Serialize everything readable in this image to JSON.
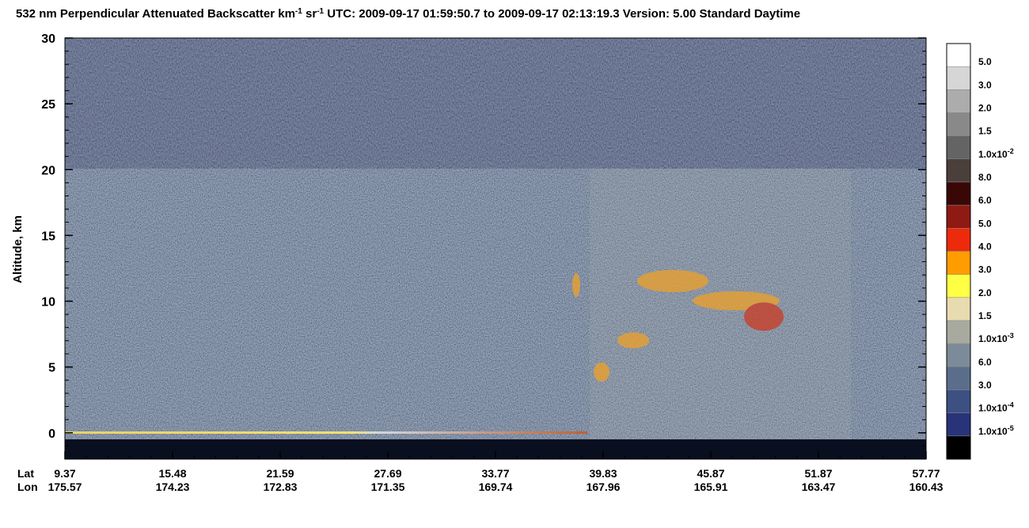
{
  "chart_data": {
    "type": "curtain",
    "title": [
      {
        "text": "532 nm Perpendicular Attenuated Backscatter km",
        "sup": "-1"
      },
      {
        "text": " sr",
        "sup": "-1"
      },
      {
        "text": "  UTC: 2009-09-17 01:59:50.7 to 2009-09-17 02:13:19.3  Version: 5.00 Standard Daytime"
      }
    ],
    "ylabel": "Altitude, km",
    "ylim": [
      -2,
      30
    ],
    "yticks": [
      0,
      5,
      10,
      15,
      20,
      25,
      30
    ],
    "x_rows": [
      {
        "name": "Lat",
        "labels": [
          "9.37",
          "15.48",
          "21.59",
          "27.69",
          "33.77",
          "39.83",
          "45.87",
          "51.87",
          "57.77"
        ]
      },
      {
        "name": "Lon",
        "labels": [
          "175.57",
          "174.23",
          "172.83",
          "171.35",
          "169.74",
          "167.96",
          "165.91",
          "163.47",
          "160.43"
        ]
      }
    ],
    "colorbar": {
      "colors": [
        "#ffffff",
        "#d6d6d6",
        "#acacac",
        "#898989",
        "#646464",
        "#4a3f3b",
        "#3a0707",
        "#8e1a13",
        "#ee2a0c",
        "#ff9d00",
        "#ffff44",
        "#e9dbb0",
        "#a8aa9f",
        "#7c8b99",
        "#5a6e8c",
        "#3c5082",
        "#28337a",
        "#000000"
      ],
      "labels": [
        {
          "text": "5.0"
        },
        {
          "text": "3.0"
        },
        {
          "text": "2.0"
        },
        {
          "text": "1.5"
        },
        {
          "text": "1.0x10",
          "sup": "-2"
        },
        {
          "text": "8.0"
        },
        {
          "text": "6.0"
        },
        {
          "text": "5.0"
        },
        {
          "text": "4.0"
        },
        {
          "text": "3.0"
        },
        {
          "text": "2.0"
        },
        {
          "text": "1.5"
        },
        {
          "text": "1.0x10",
          "sup": "-3"
        },
        {
          "text": "6.0"
        },
        {
          "text": "3.0"
        },
        {
          "text": "1.0x10",
          "sup": "-4"
        },
        {
          "text": "1.0x10",
          "sup": "-5"
        }
      ]
    }
  }
}
